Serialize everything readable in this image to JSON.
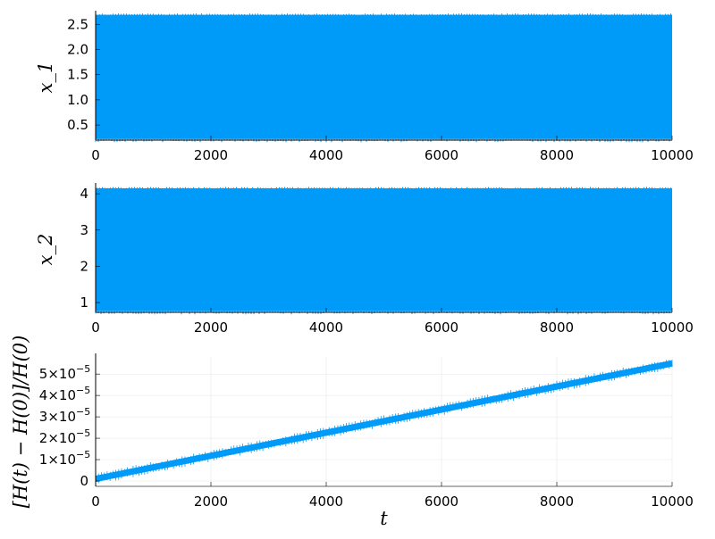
{
  "chart_data": [
    {
      "type": "line",
      "ylabel": "x_1",
      "x_range": [
        0,
        10000
      ],
      "ylim": [
        0.2,
        2.7
      ],
      "x_ticks": [
        "0",
        "2000",
        "4000",
        "6000",
        "8000",
        "10000"
      ],
      "x_tick_values": [
        0,
        2000,
        4000,
        6000,
        8000,
        10000
      ],
      "y_ticks": [
        "0.5",
        "1.0",
        "1.5",
        "2.0",
        "2.5"
      ],
      "y_tick_values": [
        0.5,
        1.0,
        1.5,
        2.0,
        2.5
      ],
      "series": [
        {
          "oscillation_min": 0.22,
          "oscillation_max": 2.69,
          "x": [
            0,
            10000
          ]
        }
      ],
      "grid": true,
      "color": "#009af9"
    },
    {
      "type": "line",
      "ylabel": "x_2",
      "x_range": [
        0,
        10000
      ],
      "ylim": [
        0.73,
        4.2
      ],
      "x_ticks": [
        "0",
        "2000",
        "4000",
        "6000",
        "8000",
        "10000"
      ],
      "x_tick_values": [
        0,
        2000,
        4000,
        6000,
        8000,
        10000
      ],
      "y_ticks": [
        "1",
        "2",
        "3",
        "4"
      ],
      "y_tick_values": [
        1,
        2,
        3,
        4
      ],
      "series": [
        {
          "oscillation_min": 0.76,
          "oscillation_max": 4.15,
          "x": [
            0,
            10000
          ]
        }
      ],
      "grid": true,
      "color": "#009af9"
    },
    {
      "type": "line",
      "xlabel": "t",
      "ylabel": "[H(t) − H(0)]/H(0)",
      "x_range": [
        0,
        10000
      ],
      "ylim": [
        -2.5e-06,
        5.8e-05
      ],
      "x_ticks": [
        "0",
        "2000",
        "4000",
        "6000",
        "8000",
        "10000"
      ],
      "x_tick_values": [
        0,
        2000,
        4000,
        6000,
        8000,
        10000
      ],
      "y_ticks": [
        "0",
        "1×10",
        "2×10",
        "3×10",
        "4×10",
        "5×10"
      ],
      "y_tick_exponent": "−5",
      "y_tick_values": [
        0,
        1e-05,
        2e-05,
        3e-05,
        4e-05,
        5e-05
      ],
      "series": [
        {
          "x": [
            0,
            10000
          ],
          "y": [
            1e-06,
            5.5e-05
          ]
        }
      ],
      "grid": true,
      "color": "#009af9"
    }
  ]
}
